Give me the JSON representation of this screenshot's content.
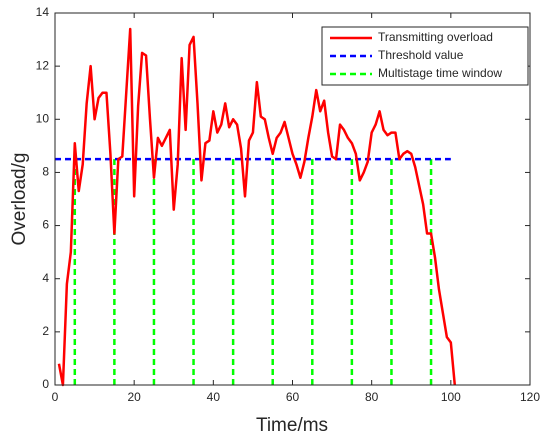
{
  "chart_data": {
    "type": "line",
    "x_label": "Time/ms",
    "y_label": "Overload/g",
    "xlim": [
      0,
      120
    ],
    "xticks": [
      0,
      20,
      40,
      60,
      80,
      100,
      120
    ],
    "ylim": [
      0,
      14
    ],
    "yticks": [
      0,
      2,
      4,
      6,
      8,
      10,
      12,
      14
    ],
    "legend": "upper right",
    "series": [
      {
        "name": "Transmitting overload",
        "color": "#ff0000",
        "line_style": "solid",
        "draw": "line",
        "x": [
          1,
          2,
          3,
          4,
          5,
          6,
          7,
          8,
          9,
          10,
          11,
          12,
          13,
          14,
          15,
          16,
          17,
          18,
          19,
          20,
          21,
          22,
          23,
          24,
          25,
          26,
          27,
          28,
          29,
          30,
          31,
          32,
          33,
          34,
          35,
          36,
          37,
          38,
          39,
          40,
          41,
          42,
          43,
          44,
          45,
          46,
          47,
          48,
          49,
          50,
          51,
          52,
          53,
          54,
          55,
          56,
          57,
          58,
          59,
          60,
          61,
          62,
          63,
          64,
          65,
          66,
          67,
          68,
          69,
          70,
          71,
          72,
          73,
          74,
          75,
          76,
          77,
          78,
          79,
          80,
          81,
          82,
          83,
          84,
          85,
          86,
          87,
          88,
          89,
          90,
          91,
          92,
          93,
          94,
          95,
          96,
          97,
          98,
          99,
          100,
          101
        ],
        "values": [
          0.8,
          0,
          3.8,
          5,
          9.1,
          7.3,
          8.3,
          10.6,
          12,
          10,
          10.8,
          11,
          11,
          8.7,
          5.7,
          8.5,
          8.6,
          11,
          13.4,
          7.1,
          10.5,
          12.5,
          12.4,
          10,
          7.8,
          9.3,
          9,
          9.3,
          9.6,
          6.6,
          8.3,
          12.3,
          9.6,
          12.8,
          13.1,
          10.6,
          7.7,
          9.1,
          9.2,
          10.3,
          9.5,
          9.8,
          10.6,
          9.7,
          10,
          9.8,
          8.9,
          7.1,
          9.2,
          9.5,
          11.4,
          10.1,
          10,
          9.3,
          8.7,
          9.3,
          9.5,
          9.9,
          9.3,
          8.7,
          8.3,
          7.8,
          8.4,
          9.3,
          10.1,
          11.1,
          10.3,
          10.7,
          9.5,
          8.6,
          8.5,
          9.8,
          9.6,
          9.3,
          9.1,
          8.7,
          7.7,
          8,
          8.4,
          9.5,
          9.8,
          10.3,
          9.6,
          9.4,
          9.5,
          9.5,
          8.5,
          8.7,
          8.8,
          8.7,
          8.2,
          7.5,
          6.8,
          5.7,
          5.7,
          4.8,
          3.6,
          2.7,
          1.8,
          1.6,
          0
        ]
      },
      {
        "name": "Threshold value",
        "color": "#0000ff",
        "line_style": "dashed",
        "draw": "line",
        "x": [
          0,
          100
        ],
        "values": [
          8.5,
          8.5
        ]
      },
      {
        "name": "Multistage time window",
        "color": "#00ff00",
        "line_style": "dashed",
        "draw": "stems",
        "x": [
          5,
          15,
          25,
          35,
          45,
          55,
          65,
          75,
          85,
          95
        ],
        "values": [
          8.5,
          8.5,
          8.5,
          8.5,
          8.5,
          8.5,
          8.5,
          8.5,
          8.5,
          8.5
        ]
      }
    ]
  }
}
